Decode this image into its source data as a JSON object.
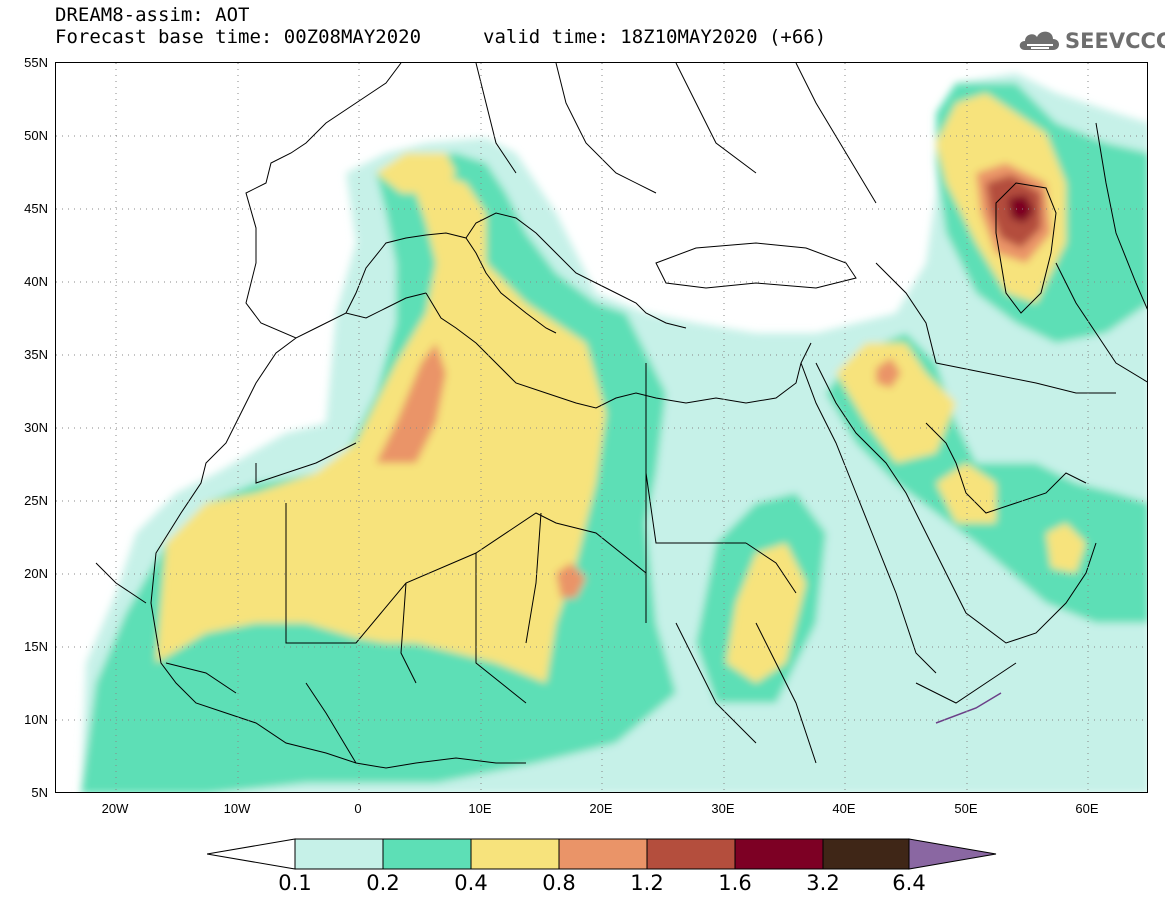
{
  "title": {
    "line1": "DREAM8-assim: AOT",
    "line2": "Forecast base time: 00Z08MAY2020",
    "line3": "valid time: 18Z10MAY2020 (+66)"
  },
  "logo": {
    "text": "SEEVCCC",
    "icon": "cloud-logo-icon"
  },
  "axes": {
    "lat_labels": [
      "55N",
      "50N",
      "45N",
      "40N",
      "35N",
      "30N",
      "25N",
      "20N",
      "15N",
      "10N",
      "5N"
    ],
    "lon_labels": [
      "20W",
      "10W",
      "0",
      "10E",
      "20E",
      "30E",
      "40E",
      "50E",
      "60E"
    ]
  },
  "colorbar": {
    "labels": [
      "0.1",
      "0.2",
      "0.4",
      "0.8",
      "1.2",
      "1.6",
      "3.2",
      "6.4"
    ],
    "colors": [
      "#ffffff",
      "#c6f1e8",
      "#5ddfb6",
      "#f7e37c",
      "#ea9468",
      "#b44e3d",
      "#7d0024",
      "#3f2617",
      "#8a67a2"
    ]
  },
  "map": {
    "lon_range": [
      -25,
      65
    ],
    "lat_range": [
      5,
      55
    ]
  }
}
